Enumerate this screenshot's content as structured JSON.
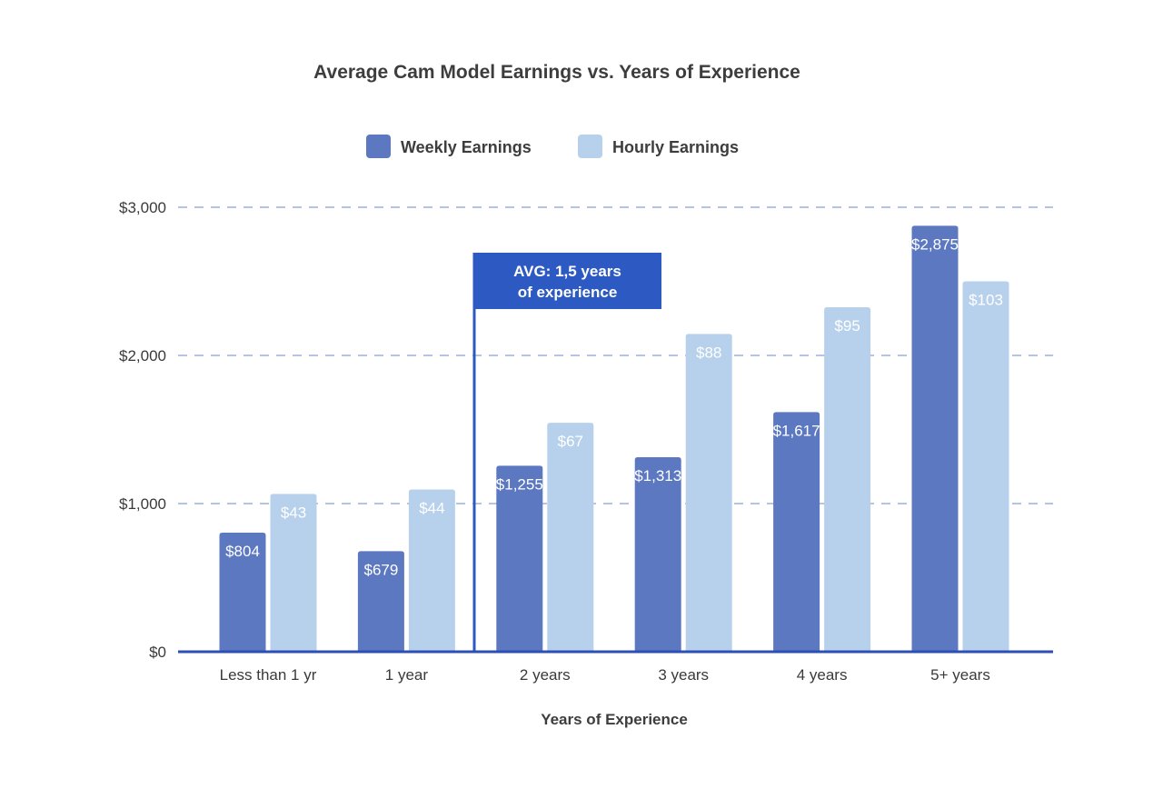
{
  "chart_data": {
    "type": "bar",
    "title": "Average Cam Model Earnings vs. Years of Experience",
    "xlabel": "Years of Experience",
    "ylabel": "",
    "categories": [
      "Less than 1 yr",
      "1 year",
      "2 years",
      "3 years",
      "4 years",
      "5+ years"
    ],
    "series": [
      {
        "name": "Weekly Earnings",
        "values": [
          804,
          679,
          1255,
          1313,
          1617,
          2875
        ],
        "color": "#5c78c1",
        "label_format": "currency"
      },
      {
        "name": "Hourly Earnings",
        "values": [
          43,
          44,
          67,
          88,
          95,
          103
        ],
        "color": "#b7d1ec",
        "label_format": "currency",
        "display_values": [
          1065,
          1095,
          1545,
          2145,
          2325,
          2500
        ]
      }
    ],
    "ylim": [
      0,
      3000
    ],
    "yticks": [
      0,
      1000,
      2000,
      3000
    ],
    "ytick_labels": [
      "$0",
      "$1,000",
      "$2,000",
      "$3,000"
    ],
    "grid": "dashed horizontal",
    "legend_position": "top-center",
    "annotation": {
      "lines": [
        "AVG: 1,5 years",
        "of experience"
      ],
      "x_value": 1.5,
      "color": "#2d59c3"
    }
  }
}
